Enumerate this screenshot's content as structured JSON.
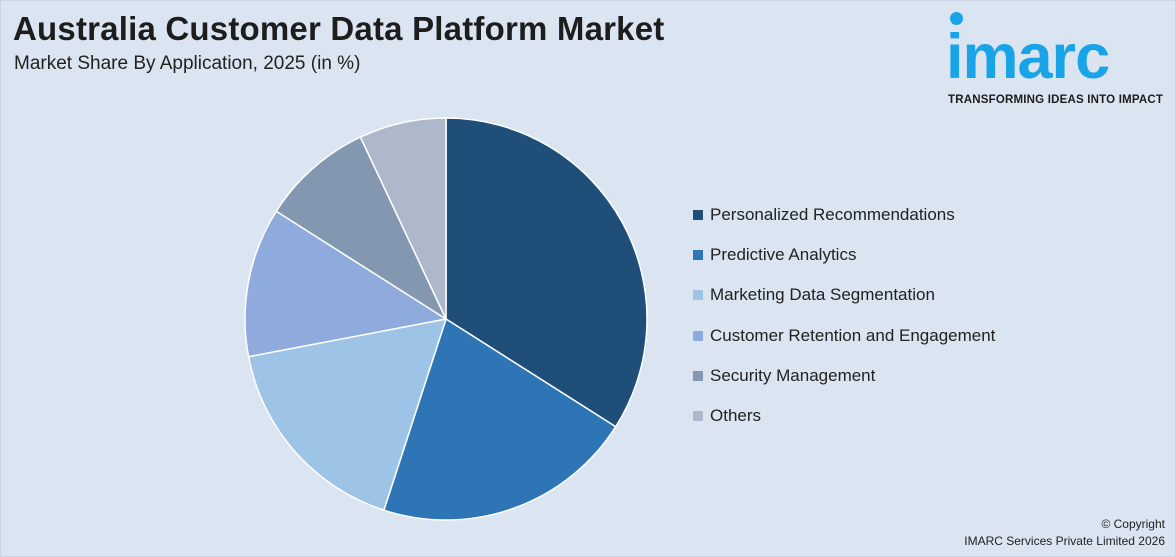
{
  "header": {
    "title": "Australia Customer Data Platform Market",
    "subtitle": "Market Share By Application, 2025 (in %)"
  },
  "logo": {
    "wordmark": "imarc",
    "tagline": "TRANSFORMING IDEAS INTO IMPACT",
    "color": "#1aa4e8"
  },
  "chart_data": {
    "type": "pie",
    "title": "Australia Customer Data Platform Market",
    "subtitle": "Market Share By Application, 2025 (in %)",
    "categories": [
      "Personalized Recommendations",
      "Predictive Analytics",
      "Marketing Data Segmentation",
      "Customer Retention and Engagement",
      "Security Management",
      "Others"
    ],
    "values": [
      34,
      21,
      17,
      12,
      9,
      7
    ],
    "colors": [
      "#1f4e79",
      "#2e75b6",
      "#9dc3e6",
      "#8faadc",
      "#8497b0",
      "#adb9ca"
    ],
    "legend_position": "right"
  },
  "footer": {
    "copyright_line1": "© Copyright",
    "copyright_line2": "IMARC Services Private Limited 2026"
  }
}
